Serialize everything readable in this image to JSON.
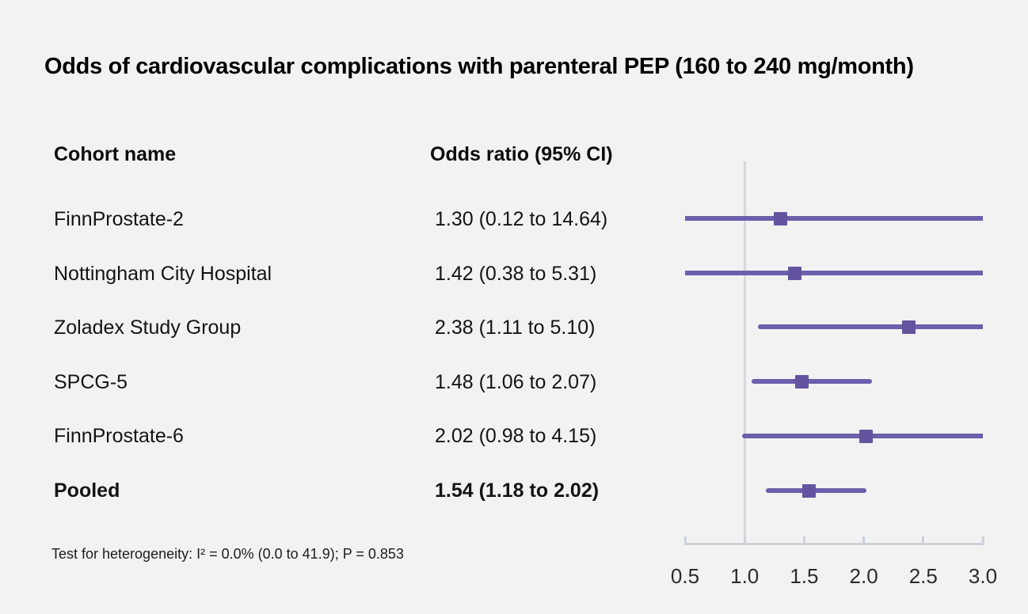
{
  "chart_data": {
    "type": "forest",
    "title": "Odds of cardiovascular complications with parenteral PEP (160 to 240 mg/month)",
    "columns": {
      "cohort": "Cohort name",
      "odds_ratio": "Odds ratio (95% CI)"
    },
    "rows": [
      {
        "name": "FinnProstate-2",
        "label": "1.30 (0.12 to 14.64)",
        "or": 1.3,
        "ci_low": 0.12,
        "ci_high": 14.64,
        "pooled": false
      },
      {
        "name": "Nottingham City Hospital",
        "label": "1.42 (0.38 to 5.31)",
        "or": 1.42,
        "ci_low": 0.38,
        "ci_high": 5.31,
        "pooled": false
      },
      {
        "name": "Zoladex Study Group",
        "label": "2.38 (1.11 to 5.10)",
        "or": 2.38,
        "ci_low": 1.11,
        "ci_high": 5.1,
        "pooled": false
      },
      {
        "name": "SPCG-5",
        "label": "1.48 (1.06 to 2.07)",
        "or": 1.48,
        "ci_low": 1.06,
        "ci_high": 2.07,
        "pooled": false
      },
      {
        "name": "FinnProstate-6",
        "label": "2.02 (0.98 to 4.15)",
        "or": 2.02,
        "ci_low": 0.98,
        "ci_high": 4.15,
        "pooled": false
      },
      {
        "name": "Pooled",
        "label": "1.54 (1.18 to 2.02)",
        "or": 1.54,
        "ci_low": 1.18,
        "ci_high": 2.02,
        "pooled": true
      }
    ],
    "axis": {
      "min": 0.5,
      "max": 3.0,
      "ticks": [
        0.5,
        1.0,
        1.5,
        2.0,
        2.5,
        3.0
      ],
      "tick_labels": [
        "0.5",
        "1.0",
        "1.5",
        "2.0",
        "2.5",
        "3.0"
      ],
      "reference_value": 1.0
    },
    "footnote": "Test for heterogeneity: I² = 0.0% (0.0 to 41.9); P = 0.853",
    "colors": {
      "background": "#f2f2f2",
      "ci_line": "#6d5fab",
      "marker": "#64549f",
      "reference_line": "#d5d9e1",
      "axis": "#ccd1d9",
      "text": "#121212"
    }
  }
}
